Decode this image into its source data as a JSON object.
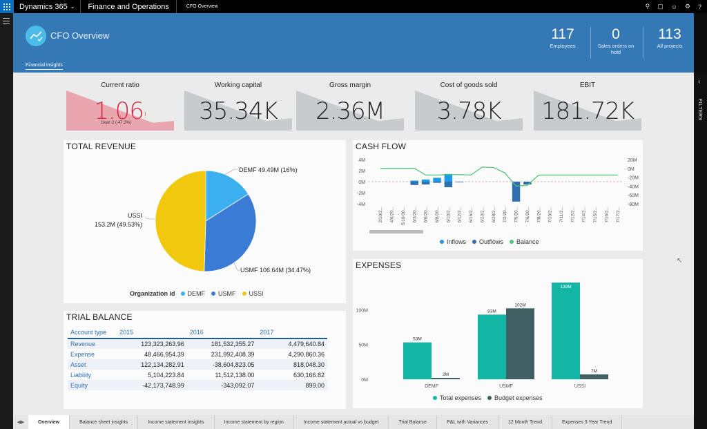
{
  "topbar": {
    "app": "Dynamics 365",
    "module": "Finance and Operations",
    "page": "CFO Overview"
  },
  "header": {
    "title": "CFO Overview",
    "tab": "Financial insights",
    "tiles": [
      {
        "value": "117",
        "label": "Employees"
      },
      {
        "value": "0",
        "label": "Sales orders on hold"
      },
      {
        "value": "113",
        "label": "All projects"
      }
    ]
  },
  "rail": {
    "filters": "FILTERS"
  },
  "kpis": [
    {
      "title": "Current ratio",
      "value": "1.06",
      "marker": "!",
      "goal": "Goal: 2 (-47.2%)"
    },
    {
      "title": "Working capital",
      "value": "35.34K"
    },
    {
      "title": "Gross margin",
      "value": "2.36M"
    },
    {
      "title": "Cost of goods sold",
      "value": "3.78K"
    },
    {
      "title": "EBIT",
      "value": "181.72K"
    }
  ],
  "colors": {
    "header": "#3478b6",
    "demf": "#3caff0",
    "usmf": "#3a7bd5",
    "ussi": "#f2c80f",
    "inflow": "#1e9be6",
    "outflow": "#2f6fb0",
    "balance": "#52c47c",
    "total_expenses": "#13b5a4",
    "budget_expenses": "#3f5f62",
    "red": "#d7263d"
  },
  "total_revenue": {
    "title": "TOTAL REVENUE",
    "labels": {
      "demf": "DEMF 49.49M (16%)",
      "usmf": "USMF 106.64M (34.47%)",
      "ussi_name": "USSI",
      "ussi_value": "153.2M (49.53%)"
    },
    "legend_title": "Organization id",
    "legend": [
      "DEMF",
      "USMF",
      "USSI"
    ]
  },
  "cash_flow": {
    "title": "CASH FLOW",
    "left_ticks": [
      "4M",
      "2M",
      "0M",
      "-2M",
      "-4M"
    ],
    "right_ticks": [
      "20M",
      "0M",
      "-20M",
      "-40M",
      "-60M",
      "-80M"
    ],
    "dates": [
      "2/10/2...",
      "4/6/20...",
      "5/10/20...",
      "6/3/20...",
      "6/6/20...",
      "6/8/20...",
      "6/10/2...",
      "6/12/2...",
      "6/16/2...",
      "6/23/2...",
      "6/28/2...",
      "7/2/20...",
      "7/5/20...",
      "7/6/20...",
      "7/8/20...",
      "7/10/2...",
      "7/11/2...",
      "7/12/2...",
      "7/14/2...",
      "7/15/2...",
      "7/16/2...",
      "7/17/2..."
    ],
    "legend": [
      "Inflows",
      "Outflows",
      "Balance"
    ]
  },
  "expenses": {
    "title": "EXPENSES",
    "y_ticks": [
      "100M",
      "50M",
      "0M"
    ],
    "legend": [
      "Total expenses",
      "Budget expenses"
    ]
  },
  "trial_balance": {
    "title": "TRIAL BALANCE",
    "columns": [
      "Account type",
      "2015",
      "2016",
      "2017"
    ],
    "rows": [
      [
        "Revenue",
        "123,323,263.96",
        "181,532,355.27",
        "4,479,640.84"
      ],
      [
        "Expense",
        "48,466,954.39",
        "231,992,408.39",
        "4,290,860.36"
      ],
      [
        "Asset",
        "122,134,282.91",
        "-38,604,823.05",
        "818,048.30"
      ],
      [
        "Liability",
        "5,104,223.84",
        "11,512,138.00",
        "630,166.82"
      ],
      [
        "Equity",
        "-42,173,748.99",
        "-343,092.07",
        "899.00"
      ]
    ]
  },
  "tabs": [
    "Overview",
    "Balance sheet insights",
    "Income statement insights",
    "Income statement by region",
    "Income statement actual vs budget",
    "Trial Balance",
    "P&L with Variances",
    "12 Month Trend",
    "Expenses 3 Year Trend"
  ],
  "chart_data": [
    {
      "type": "pie",
      "title": "TOTAL REVENUE",
      "legend_title": "Organization id",
      "categories": [
        "DEMF",
        "USMF",
        "USSI"
      ],
      "values": [
        49.49,
        106.64,
        153.2
      ],
      "percent": [
        16,
        34.47,
        49.53
      ],
      "unit": "M"
    },
    {
      "type": "bar",
      "title": "CASH FLOW",
      "categories": [
        "2/10/2...",
        "4/6/20...",
        "5/10/20...",
        "6/3/20...",
        "6/6/20...",
        "6/8/20...",
        "6/10/2...",
        "6/12/2...",
        "6/16/2...",
        "6/23/2...",
        "6/28/2...",
        "7/2/20...",
        "7/5/20...",
        "7/6/20...",
        "7/8/20...",
        "7/10/2...",
        "7/11/2...",
        "7/12/2...",
        "7/14/2...",
        "7/15/2...",
        "7/16/2...",
        "7/17/2..."
      ],
      "series": [
        {
          "name": "Inflows",
          "values": [
            0,
            0,
            0,
            0.2,
            0.4,
            0.7,
            1.4,
            0,
            0,
            0,
            0,
            0,
            0,
            0,
            0,
            0,
            0,
            0,
            0,
            0,
            0,
            0
          ]
        },
        {
          "name": "Outflows",
          "values": [
            0,
            0,
            0,
            -0.6,
            -0.5,
            -0.2,
            -1.0,
            -0.1,
            0,
            0,
            0,
            0,
            -3.6,
            -0.5,
            0,
            0,
            0,
            0,
            0,
            0,
            0,
            0
          ]
        },
        {
          "name": "Balance",
          "values": [
            0,
            0,
            0,
            0.4,
            -15,
            -15,
            -14,
            -14,
            -15,
            3,
            2,
            -10,
            -40,
            -38,
            -15,
            -15,
            -15,
            -15,
            -15,
            -15,
            -15,
            -15
          ]
        }
      ],
      "ylim_left": [
        -4,
        4
      ],
      "ylim_right": [
        -80,
        20
      ],
      "ylabel_left_unit": "M",
      "ylabel_right_unit": "M"
    },
    {
      "type": "bar",
      "title": "EXPENSES",
      "categories": [
        "DEMF",
        "USMF",
        "USSI"
      ],
      "series": [
        {
          "name": "Total expenses",
          "values": [
            53,
            93,
            139
          ]
        },
        {
          "name": "Budget expenses",
          "values": [
            2,
            102,
            7
          ]
        }
      ],
      "ylim": [
        0,
        150
      ],
      "unit": "M"
    }
  ]
}
